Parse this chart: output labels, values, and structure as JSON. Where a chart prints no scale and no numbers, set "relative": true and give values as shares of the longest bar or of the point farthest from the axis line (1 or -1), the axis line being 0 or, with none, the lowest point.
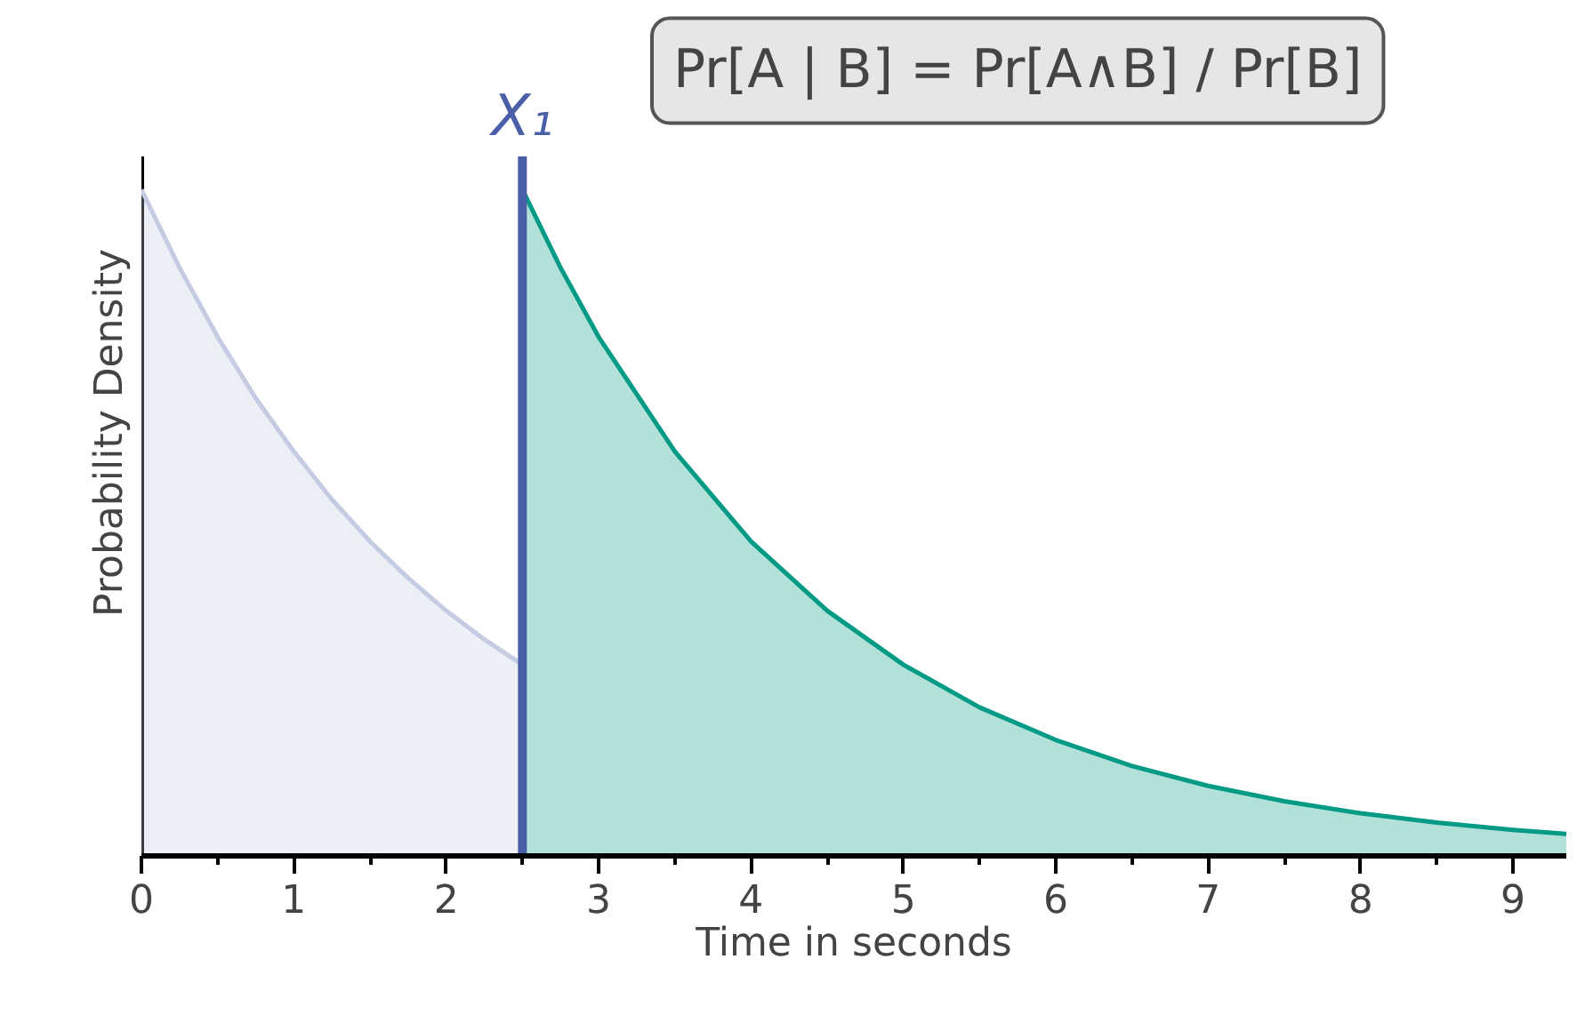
{
  "chart_data": {
    "type": "area",
    "relative": true,
    "xlabel": "Time in seconds",
    "ylabel": "Probability Density",
    "xlim": [
      0,
      9.35
    ],
    "xticks": [
      0,
      1,
      2,
      3,
      4,
      5,
      6,
      7,
      8,
      9
    ],
    "grid": false,
    "series": [
      {
        "color": "#c5cbe3",
        "x": [
          0,
          0.25,
          0.5,
          0.75,
          1,
          1.25,
          1.5,
          1.75,
          2,
          2.25,
          2.5
        ],
        "values": [
          1,
          0.883,
          0.779,
          0.687,
          0.607,
          0.535,
          0.472,
          0.417,
          0.368,
          0.325,
          0.287
        ]
      },
      {
        "color": "#009a85",
        "x": [
          2.5,
          2.75,
          3,
          3.5,
          4,
          4.5,
          5,
          5.5,
          6,
          6.5,
          7,
          7.5,
          8,
          8.5,
          9,
          9.35
        ],
        "values": [
          1,
          0.883,
          0.779,
          0.607,
          0.472,
          0.368,
          0.287,
          0.223,
          0.174,
          0.135,
          0.105,
          0.082,
          0.064,
          0.05,
          0.039,
          0.033
        ]
      }
    ],
    "ref_lines": [
      {
        "axis": "x",
        "value": 2.5,
        "label": "X₁",
        "color": "#4a5fa8"
      }
    ],
    "annotations": [
      "Pr[A | B] = Pr[A∧B] / Pr[B]"
    ]
  }
}
